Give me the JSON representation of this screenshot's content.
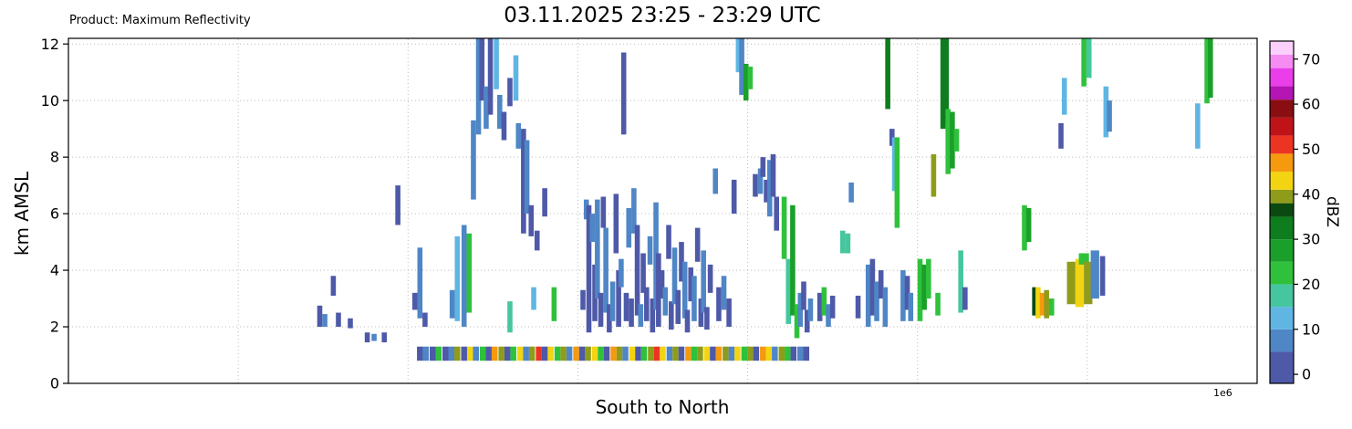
{
  "chart_data": {
    "type": "heatmap",
    "title": "03.11.2025 23:25 - 23:29 UTC",
    "product_label": "Product: Maximum Reflectivity",
    "xlabel": "South to North",
    "ylabel": "km AMSL",
    "x_offset_label": "1e6",
    "x_range": [
      0,
      1.4
    ],
    "y_range": [
      0,
      12.2
    ],
    "y_ticks": [
      0,
      2,
      4,
      6,
      8,
      10,
      12
    ],
    "x_gridlines": [
      0.2,
      0.4,
      0.6,
      0.8,
      1.0,
      1.2,
      1.4
    ],
    "grid": true,
    "colorbar": {
      "label": "dBZ",
      "ticks": [
        0,
        10,
        20,
        30,
        40,
        50,
        60,
        70
      ],
      "vmin": -2,
      "vmax": 74,
      "segments": [
        [
          -2,
          5,
          "#4e59a8"
        ],
        [
          5,
          10,
          "#4f86c6"
        ],
        [
          10,
          15,
          "#5fb6e3"
        ],
        [
          15,
          20,
          "#46c69e"
        ],
        [
          20,
          25,
          "#2fc13c"
        ],
        [
          25,
          30,
          "#1aa02a"
        ],
        [
          30,
          35,
          "#0e7d1e"
        ],
        [
          35,
          38,
          "#0a4a10"
        ],
        [
          38,
          41,
          "#8f9c1a"
        ],
        [
          41,
          45,
          "#f2d413"
        ],
        [
          45,
          49,
          "#f5990f"
        ],
        [
          49,
          53,
          "#ec3423"
        ],
        [
          53,
          57,
          "#c01318"
        ],
        [
          57,
          61,
          "#8a0d11"
        ],
        [
          61,
          64,
          "#b515b5"
        ],
        [
          64,
          68,
          "#e93ee9"
        ],
        [
          68,
          71,
          "#f48cf2"
        ],
        [
          71,
          74,
          "#fbd0fa"
        ]
      ]
    },
    "strip_default_width": 0.006,
    "strips": [
      [
        0.296,
        2.0,
        2.75,
        3
      ],
      [
        0.302,
        2.0,
        2.45,
        6
      ],
      [
        0.312,
        3.1,
        3.8,
        3
      ],
      [
        0.318,
        2.0,
        2.5,
        3
      ],
      [
        0.332,
        1.95,
        2.3,
        3
      ],
      [
        0.352,
        1.45,
        1.8,
        3
      ],
      [
        0.36,
        1.5,
        1.75,
        6
      ],
      [
        0.372,
        1.45,
        1.8,
        3
      ],
      [
        0.388,
        5.6,
        7.0,
        3
      ],
      [
        0.408,
        2.6,
        3.2,
        3
      ],
      [
        0.414,
        2.3,
        4.8,
        6
      ],
      [
        0.42,
        2.0,
        2.5,
        3
      ],
      [
        0.452,
        2.3,
        3.3,
        6
      ],
      [
        0.458,
        2.2,
        5.2,
        13
      ],
      [
        0.466,
        2.0,
        5.6,
        6
      ],
      [
        0.472,
        2.5,
        5.3,
        22
      ],
      [
        0.477,
        6.5,
        9.3,
        6
      ],
      [
        0.483,
        8.8,
        12.2,
        6
      ],
      [
        0.487,
        10.0,
        12.2,
        3
      ],
      [
        0.492,
        9.0,
        10.5,
        6
      ],
      [
        0.497,
        9.5,
        12.2,
        3
      ],
      [
        0.504,
        10.4,
        12.2,
        13
      ],
      [
        0.508,
        9.0,
        10.2,
        6
      ],
      [
        0.513,
        8.6,
        9.6,
        3
      ],
      [
        0.52,
        1.8,
        2.9,
        17
      ],
      [
        0.52,
        9.8,
        10.8,
        3
      ],
      [
        0.527,
        10.0,
        11.6,
        13
      ],
      [
        0.53,
        8.3,
        9.2,
        6
      ],
      [
        0.536,
        5.3,
        9.0,
        3
      ],
      [
        0.54,
        6.0,
        8.6,
        6
      ],
      [
        0.545,
        5.2,
        6.3,
        3
      ],
      [
        0.548,
        2.6,
        3.4,
        13
      ],
      [
        0.552,
        4.7,
        5.4,
        3
      ],
      [
        0.561,
        5.9,
        6.9,
        3
      ],
      [
        0.572,
        2.2,
        3.4,
        22
      ],
      [
        0.606,
        2.6,
        3.3,
        3
      ],
      [
        0.61,
        5.8,
        6.5,
        6
      ],
      [
        0.613,
        1.8,
        6.3,
        3
      ],
      [
        0.617,
        5.0,
        6.0,
        6
      ],
      [
        0.62,
        2.2,
        4.2,
        3
      ],
      [
        0.623,
        3.0,
        6.5,
        6
      ],
      [
        0.627,
        2.0,
        3.2,
        3
      ],
      [
        0.63,
        5.5,
        6.6,
        3
      ],
      [
        0.633,
        2.5,
        5.5,
        6
      ],
      [
        0.637,
        1.8,
        2.8,
        3
      ],
      [
        0.641,
        2.2,
        3.6,
        6
      ],
      [
        0.645,
        4.6,
        6.7,
        3
      ],
      [
        0.648,
        2.0,
        4.0,
        3
      ],
      [
        0.651,
        3.4,
        4.4,
        6
      ],
      [
        0.654,
        8.8,
        11.7,
        3
      ],
      [
        0.657,
        2.2,
        3.2,
        3
      ],
      [
        0.66,
        4.8,
        6.2,
        6
      ],
      [
        0.663,
        2.0,
        3.0,
        3
      ],
      [
        0.666,
        5.3,
        6.9,
        6
      ],
      [
        0.67,
        2.4,
        5.6,
        3
      ],
      [
        0.674,
        2.0,
        2.8,
        6
      ],
      [
        0.677,
        3.2,
        4.6,
        3
      ],
      [
        0.681,
        2.2,
        3.4,
        3
      ],
      [
        0.685,
        4.2,
        5.2,
        6
      ],
      [
        0.688,
        1.8,
        3.0,
        3
      ],
      [
        0.692,
        2.6,
        6.4,
        6
      ],
      [
        0.695,
        2.0,
        4.6,
        3
      ],
      [
        0.699,
        3.0,
        4.0,
        3
      ],
      [
        0.703,
        2.4,
        3.4,
        6
      ],
      [
        0.707,
        4.4,
        5.6,
        3
      ],
      [
        0.71,
        1.9,
        2.9,
        3
      ],
      [
        0.714,
        2.8,
        4.8,
        6
      ],
      [
        0.718,
        2.1,
        3.3,
        3
      ],
      [
        0.722,
        3.6,
        5.0,
        3
      ],
      [
        0.726,
        2.3,
        4.3,
        6
      ],
      [
        0.729,
        1.8,
        2.6,
        3
      ],
      [
        0.733,
        2.9,
        4.1,
        3
      ],
      [
        0.737,
        2.2,
        3.8,
        6
      ],
      [
        0.741,
        4.3,
        5.5,
        3
      ],
      [
        0.745,
        2.0,
        3.0,
        3
      ],
      [
        0.748,
        2.5,
        4.7,
        6
      ],
      [
        0.752,
        1.9,
        2.7,
        3
      ],
      [
        0.756,
        3.2,
        4.2,
        3
      ],
      [
        0.762,
        6.7,
        7.6,
        6
      ],
      [
        0.766,
        2.2,
        3.4,
        3
      ],
      [
        0.772,
        2.6,
        3.8,
        6
      ],
      [
        0.778,
        2.0,
        3.0,
        3
      ],
      [
        0.784,
        6.0,
        7.2,
        3
      ],
      [
        0.789,
        11.0,
        12.2,
        13
      ],
      [
        0.793,
        10.2,
        12.2,
        6
      ],
      [
        0.798,
        10.0,
        11.3,
        27
      ],
      [
        0.803,
        10.4,
        11.2,
        22
      ],
      [
        0.809,
        6.6,
        7.4,
        3
      ],
      [
        0.815,
        6.7,
        7.6,
        6
      ],
      [
        0.818,
        7.3,
        8.0,
        3
      ],
      [
        0.822,
        6.4,
        7.2,
        3
      ],
      [
        0.826,
        5.9,
        7.9,
        6
      ],
      [
        0.83,
        6.6,
        8.1,
        3
      ],
      [
        0.834,
        5.4,
        6.6,
        3
      ],
      [
        0.843,
        4.4,
        6.6,
        22
      ],
      [
        0.848,
        2.1,
        4.4,
        17
      ],
      [
        0.853,
        2.4,
        6.3,
        25
      ],
      [
        0.858,
        1.6,
        2.8,
        22
      ],
      [
        0.862,
        2.0,
        3.2,
        6
      ],
      [
        0.866,
        2.6,
        3.6,
        3
      ],
      [
        0.87,
        1.8,
        2.6,
        3
      ],
      [
        0.874,
        2.2,
        3.0,
        6
      ],
      [
        0.885,
        2.2,
        3.2,
        3
      ],
      [
        0.89,
        2.4,
        3.4,
        22
      ],
      [
        0.895,
        2.0,
        2.8,
        6
      ],
      [
        0.9,
        2.3,
        3.1,
        3
      ],
      [
        0.912,
        4.6,
        5.4,
        17
      ],
      [
        0.918,
        4.6,
        5.3,
        17
      ],
      [
        0.922,
        6.4,
        7.1,
        6
      ],
      [
        0.93,
        2.3,
        3.1,
        3
      ],
      [
        0.942,
        2.0,
        4.2,
        6
      ],
      [
        0.947,
        2.4,
        4.4,
        3
      ],
      [
        0.952,
        2.2,
        3.6,
        6
      ],
      [
        0.957,
        3.0,
        4.0,
        3
      ],
      [
        0.962,
        2.0,
        3.4,
        6
      ],
      [
        0.965,
        9.7,
        12.2,
        32
      ],
      [
        0.97,
        8.4,
        9.0,
        3
      ],
      [
        0.973,
        6.8,
        8.7,
        13
      ],
      [
        0.976,
        5.5,
        8.7,
        22
      ],
      [
        0.983,
        2.2,
        4.0,
        6
      ],
      [
        0.988,
        2.6,
        3.8,
        3
      ],
      [
        0.992,
        2.2,
        3.2,
        6
      ],
      [
        1.003,
        2.2,
        4.4,
        22
      ],
      [
        1.008,
        2.6,
        4.2,
        25
      ],
      [
        1.013,
        3.0,
        4.4,
        22
      ],
      [
        1.019,
        6.6,
        8.1,
        40
      ],
      [
        1.024,
        2.4,
        3.2,
        22
      ],
      [
        1.03,
        9.0,
        12.2,
        32
      ],
      [
        1.034,
        9.2,
        12.2,
        30
      ],
      [
        1.036,
        7.4,
        9.7,
        22
      ],
      [
        1.041,
        7.6,
        9.6,
        25
      ],
      [
        1.046,
        8.2,
        9.0,
        22
      ],
      [
        1.051,
        2.5,
        4.7,
        17
      ],
      [
        1.056,
        2.6,
        3.4,
        3
      ],
      [
        1.126,
        4.7,
        6.3,
        22
      ],
      [
        1.131,
        5.0,
        6.2,
        25
      ],
      [
        1.138,
        2.4,
        3.4,
        37
      ],
      [
        1.142,
        2.3,
        3.4,
        43
      ],
      [
        1.147,
        2.4,
        3.2,
        46
      ],
      [
        1.152,
        2.3,
        3.3,
        40
      ],
      [
        1.158,
        2.4,
        3.0,
        22
      ],
      [
        1.169,
        8.3,
        9.2,
        3
      ],
      [
        1.173,
        9.5,
        10.8,
        13
      ],
      [
        1.181,
        2.8,
        4.3,
        40,
        0.01
      ],
      [
        1.191,
        2.7,
        4.4,
        43,
        0.01
      ],
      [
        1.196,
        4.2,
        4.6,
        22,
        0.012
      ],
      [
        1.196,
        10.5,
        12.2,
        22
      ],
      [
        1.201,
        2.8,
        4.3,
        40,
        0.01
      ],
      [
        1.202,
        10.8,
        12.2,
        17
      ],
      [
        1.209,
        3.0,
        4.7,
        6,
        0.01
      ],
      [
        1.218,
        3.1,
        4.5,
        3
      ],
      [
        1.222,
        8.7,
        10.5,
        13
      ],
      [
        1.226,
        8.9,
        10.0,
        6
      ],
      [
        1.33,
        8.3,
        9.9,
        13
      ],
      [
        1.341,
        9.9,
        12.2,
        22
      ],
      [
        1.345,
        10.1,
        12.2,
        25
      ]
    ],
    "low_line": {
      "y0": 0.8,
      "y1": 1.3,
      "width": 0.007,
      "points": [
        [
          0.414,
          3
        ],
        [
          0.421,
          6
        ],
        [
          0.429,
          3
        ],
        [
          0.436,
          22
        ],
        [
          0.444,
          3
        ],
        [
          0.451,
          6
        ],
        [
          0.458,
          40
        ],
        [
          0.466,
          3
        ],
        [
          0.473,
          43
        ],
        [
          0.48,
          6
        ],
        [
          0.488,
          22
        ],
        [
          0.495,
          3
        ],
        [
          0.502,
          46
        ],
        [
          0.51,
          40
        ],
        [
          0.517,
          3
        ],
        [
          0.524,
          22
        ],
        [
          0.532,
          43
        ],
        [
          0.539,
          6
        ],
        [
          0.546,
          40
        ],
        [
          0.554,
          50
        ],
        [
          0.561,
          3
        ],
        [
          0.568,
          43
        ],
        [
          0.576,
          22
        ],
        [
          0.583,
          40
        ],
        [
          0.59,
          6
        ],
        [
          0.598,
          46
        ],
        [
          0.605,
          3
        ],
        [
          0.612,
          40
        ],
        [
          0.62,
          43
        ],
        [
          0.627,
          22
        ],
        [
          0.634,
          3
        ],
        [
          0.642,
          46
        ],
        [
          0.649,
          40
        ],
        [
          0.656,
          6
        ],
        [
          0.664,
          43
        ],
        [
          0.671,
          3
        ],
        [
          0.678,
          22
        ],
        [
          0.686,
          40
        ],
        [
          0.693,
          50
        ],
        [
          0.7,
          43
        ],
        [
          0.708,
          6
        ],
        [
          0.715,
          40
        ],
        [
          0.722,
          3
        ],
        [
          0.73,
          46
        ],
        [
          0.737,
          22
        ],
        [
          0.744,
          40
        ],
        [
          0.752,
          43
        ],
        [
          0.759,
          3
        ],
        [
          0.766,
          46
        ],
        [
          0.774,
          40
        ],
        [
          0.781,
          6
        ],
        [
          0.788,
          43
        ],
        [
          0.796,
          22
        ],
        [
          0.803,
          40
        ],
        [
          0.81,
          3
        ],
        [
          0.818,
          46
        ],
        [
          0.825,
          43
        ],
        [
          0.832,
          6
        ],
        [
          0.84,
          40
        ],
        [
          0.847,
          22
        ],
        [
          0.854,
          3
        ],
        [
          0.862,
          6
        ],
        [
          0.869,
          3
        ]
      ]
    }
  }
}
